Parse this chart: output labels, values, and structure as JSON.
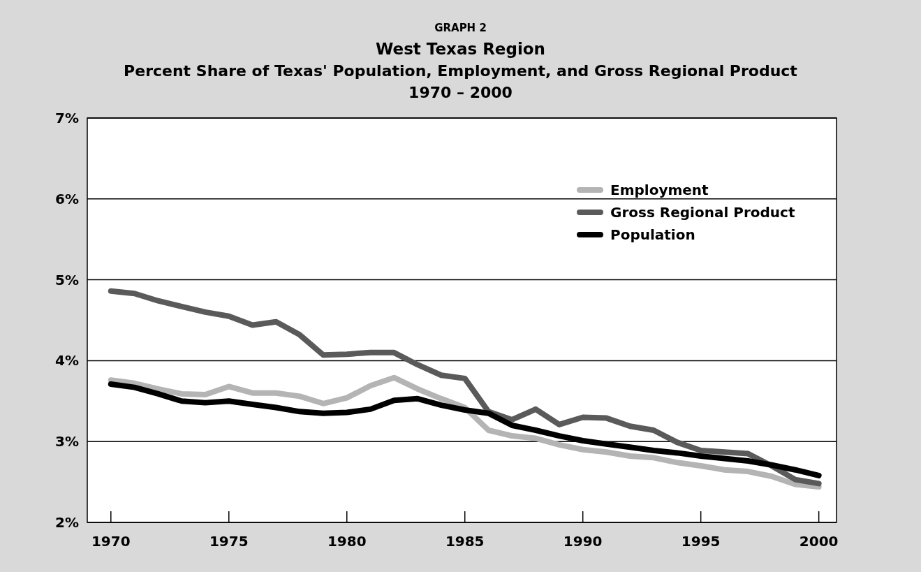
{
  "chart_data": {
    "type": "line",
    "title": "West Texas Region",
    "subtitle": "Percent Share of Texas' Population, Employment, and Gross Regional Product",
    "annotations": [
      "GRAPH 2",
      "1970 – 2000"
    ],
    "x": [
      1970,
      1971,
      1972,
      1973,
      1974,
      1975,
      1976,
      1977,
      1978,
      1979,
      1980,
      1981,
      1982,
      1983,
      1984,
      1985,
      1986,
      1987,
      1988,
      1989,
      1990,
      1991,
      1992,
      1993,
      1994,
      1995,
      1996,
      1997,
      1998,
      1999,
      2000
    ],
    "series": [
      {
        "name": "Employment",
        "color": "#b4b4b4",
        "values": [
          3.76,
          3.72,
          3.65,
          3.59,
          3.58,
          3.68,
          3.6,
          3.6,
          3.56,
          3.47,
          3.54,
          3.69,
          3.79,
          3.65,
          3.53,
          3.42,
          3.14,
          3.07,
          3.04,
          2.96,
          2.9,
          2.87,
          2.82,
          2.8,
          2.74,
          2.7,
          2.65,
          2.63,
          2.57,
          2.47,
          2.44
        ]
      },
      {
        "name": "Gross Regional Product",
        "color": "#5a5a5a",
        "values": [
          4.86,
          4.83,
          4.74,
          4.67,
          4.6,
          4.55,
          4.44,
          4.48,
          4.32,
          4.07,
          4.08,
          4.1,
          4.1,
          3.95,
          3.82,
          3.78,
          3.37,
          3.27,
          3.4,
          3.21,
          3.3,
          3.29,
          3.19,
          3.14,
          2.99,
          2.89,
          2.87,
          2.85,
          2.7,
          2.53,
          2.48
        ]
      },
      {
        "name": "Population",
        "color": "#000000",
        "values": [
          3.71,
          3.67,
          3.59,
          3.5,
          3.48,
          3.5,
          3.46,
          3.42,
          3.37,
          3.35,
          3.36,
          3.4,
          3.51,
          3.53,
          3.45,
          3.39,
          3.35,
          3.2,
          3.14,
          3.07,
          3.01,
          2.97,
          2.93,
          2.89,
          2.86,
          2.82,
          2.79,
          2.76,
          2.71,
          2.65,
          2.58
        ]
      }
    ],
    "xlim": [
      1969,
      2000.75
    ],
    "xticks": [
      1970,
      1975,
      1980,
      1985,
      1990,
      1995,
      2000
    ],
    "ylim": [
      2,
      7
    ],
    "yticks": [
      {
        "value": 2,
        "label": "2%"
      },
      {
        "value": 3,
        "label": "3%"
      },
      {
        "value": 4,
        "label": "4%"
      },
      {
        "value": 5,
        "label": "5%"
      },
      {
        "value": 6,
        "label": "6%"
      },
      {
        "value": 7,
        "label": "7%"
      }
    ],
    "grid": "y",
    "legend": "top right",
    "line_style": "solid",
    "marker": "none"
  }
}
